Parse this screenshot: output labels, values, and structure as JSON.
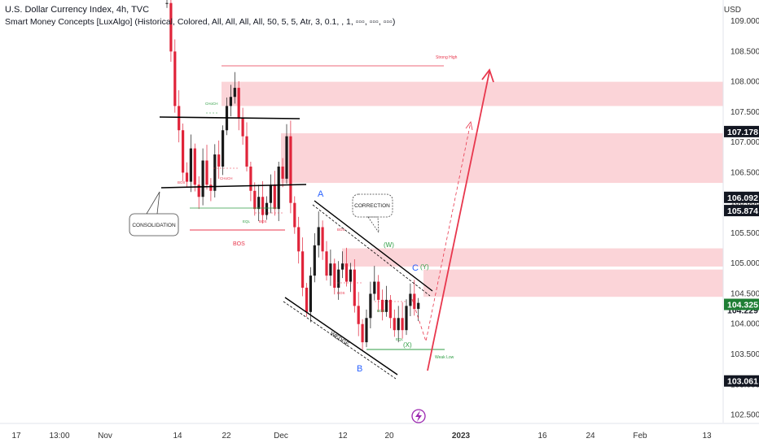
{
  "header": {
    "title": "U.S. Dollar Currency Index, 4h, TVC",
    "indicator": "Smart Money Concepts [LuxAlgo] (Historical, Colored, All, All, All, All, 50, 5, 5, Atr, 3, 0.1, , 1, ▫▫▫, ▫▫▫, ▫▫▫)",
    "unit": "USD"
  },
  "colors": {
    "up": "#1a1a1a",
    "down": "#e0243a",
    "zone": "#fbd4d8",
    "green": "#2f9e44",
    "blue": "#2962ff",
    "red_line": "#e8374d",
    "axis_text": "#333333"
  },
  "chart_data": {
    "type": "candlestick",
    "symbol": "U.S. Dollar Currency Index",
    "interval": "4h",
    "ylim": [
      102.4,
      109.35
    ],
    "y_ticks": [
      "102.500",
      "103.000",
      "103.500",
      "104.000",
      "104.500",
      "105.000",
      "105.500",
      "106.000",
      "106.500",
      "107.000",
      "107.500",
      "108.000",
      "108.500",
      "109.000"
    ],
    "x_ticks": [
      "17",
      "13:00",
      "Nov",
      "14",
      "22",
      "Dec",
      "12",
      "20",
      "2023",
      "16",
      "24",
      "Feb",
      "13"
    ],
    "price_tags": [
      {
        "label": "107.178",
        "value": 107.178,
        "style": "dark"
      },
      {
        "label": "106.092",
        "value": 106.092,
        "style": "dark"
      },
      {
        "label": "105.874",
        "value": 105.874,
        "style": "dark"
      },
      {
        "label": "104.229",
        "value": 104.229,
        "style": "light"
      },
      {
        "label": "104.325",
        "value": 104.325,
        "style": "green"
      },
      {
        "label": "103.061",
        "value": 103.061,
        "style": "dark"
      }
    ],
    "close_path": [
      {
        "t": 1,
        "v": 109.3
      },
      {
        "t": 2,
        "v": 108.5
      },
      {
        "t": 3,
        "v": 107.6
      },
      {
        "t": 4,
        "v": 107.2
      },
      {
        "t": 5,
        "v": 106.5
      },
      {
        "t": 6,
        "v": 106.35
      },
      {
        "t": 7,
        "v": 106.9
      },
      {
        "t": 8,
        "v": 106.3
      },
      {
        "t": 9,
        "v": 106.1
      },
      {
        "t": 10,
        "v": 106.7
      },
      {
        "t": 11,
        "v": 106.3
      },
      {
        "t": 12,
        "v": 106.2
      },
      {
        "t": 13,
        "v": 106.8
      },
      {
        "t": 14,
        "v": 106.6
      },
      {
        "t": 15,
        "v": 107.2
      },
      {
        "t": 16,
        "v": 107.6
      },
      {
        "t": 17,
        "v": 107.75
      },
      {
        "t": 18,
        "v": 107.9
      },
      {
        "t": 19,
        "v": 107.4
      },
      {
        "t": 20,
        "v": 107.1
      },
      {
        "t": 21,
        "v": 106.6
      },
      {
        "t": 22,
        "v": 106.2
      },
      {
        "t": 23,
        "v": 105.9
      },
      {
        "t": 24,
        "v": 106.1
      },
      {
        "t": 25,
        "v": 105.8
      },
      {
        "t": 26,
        "v": 106.0
      },
      {
        "t": 27,
        "v": 106.3
      },
      {
        "t": 28,
        "v": 105.9
      },
      {
        "t": 29,
        "v": 106.6
      },
      {
        "t": 30,
        "v": 106.4
      },
      {
        "t": 31,
        "v": 107.1
      },
      {
        "t": 32,
        "v": 106.0
      },
      {
        "t": 33,
        "v": 105.6
      },
      {
        "t": 34,
        "v": 105.2
      },
      {
        "t": 35,
        "v": 104.6
      },
      {
        "t": 36,
        "v": 104.2
      },
      {
        "t": 37,
        "v": 104.8
      },
      {
        "t": 38,
        "v": 105.3
      },
      {
        "t": 39,
        "v": 105.6
      },
      {
        "t": 40,
        "v": 105.2
      },
      {
        "t": 41,
        "v": 104.8
      },
      {
        "t": 42,
        "v": 105.0
      },
      {
        "t": 43,
        "v": 104.6
      },
      {
        "t": 44,
        "v": 104.9
      },
      {
        "t": 45,
        "v": 105.0
      },
      {
        "t": 46,
        "v": 104.7
      },
      {
        "t": 47,
        "v": 104.9
      },
      {
        "t": 48,
        "v": 104.3
      },
      {
        "t": 49,
        "v": 104.0
      },
      {
        "t": 50,
        "v": 103.7
      },
      {
        "t": 51,
        "v": 104.1
      },
      {
        "t": 52,
        "v": 104.5
      },
      {
        "t": 53,
        "v": 104.7
      },
      {
        "t": 54,
        "v": 104.4
      },
      {
        "t": 55,
        "v": 104.2
      },
      {
        "t": 56,
        "v": 104.4
      },
      {
        "t": 57,
        "v": 104.1
      },
      {
        "t": 58,
        "v": 103.9
      },
      {
        "t": 59,
        "v": 104.1
      },
      {
        "t": 60,
        "v": 103.9
      },
      {
        "t": 61,
        "v": 104.3
      },
      {
        "t": 62,
        "v": 104.5
      },
      {
        "t": 63,
        "v": 104.25
      },
      {
        "t": 64,
        "v": 104.35
      }
    ],
    "zones": [
      {
        "from": 107.6,
        "to": 108.0
      },
      {
        "from": 106.33,
        "to": 107.15
      },
      {
        "from": 104.95,
        "to": 105.25
      },
      {
        "from": 104.45,
        "to": 104.9
      }
    ],
    "annotations": {
      "consolidation": "CONSOLIDATION",
      "correction": "CORRECTION",
      "wedge": "WEDGE",
      "wave_a": "A",
      "wave_b": "B",
      "wave_c": "C",
      "wave_w": "(W)",
      "wave_x": "(X)",
      "wave_y": "(Y)",
      "bos_big": "BOS",
      "bos_small": "BOS",
      "choch": "CHoCH",
      "eql": "EQL",
      "strong_high": "Strong High",
      "weak_low": "Weak Low"
    }
  }
}
